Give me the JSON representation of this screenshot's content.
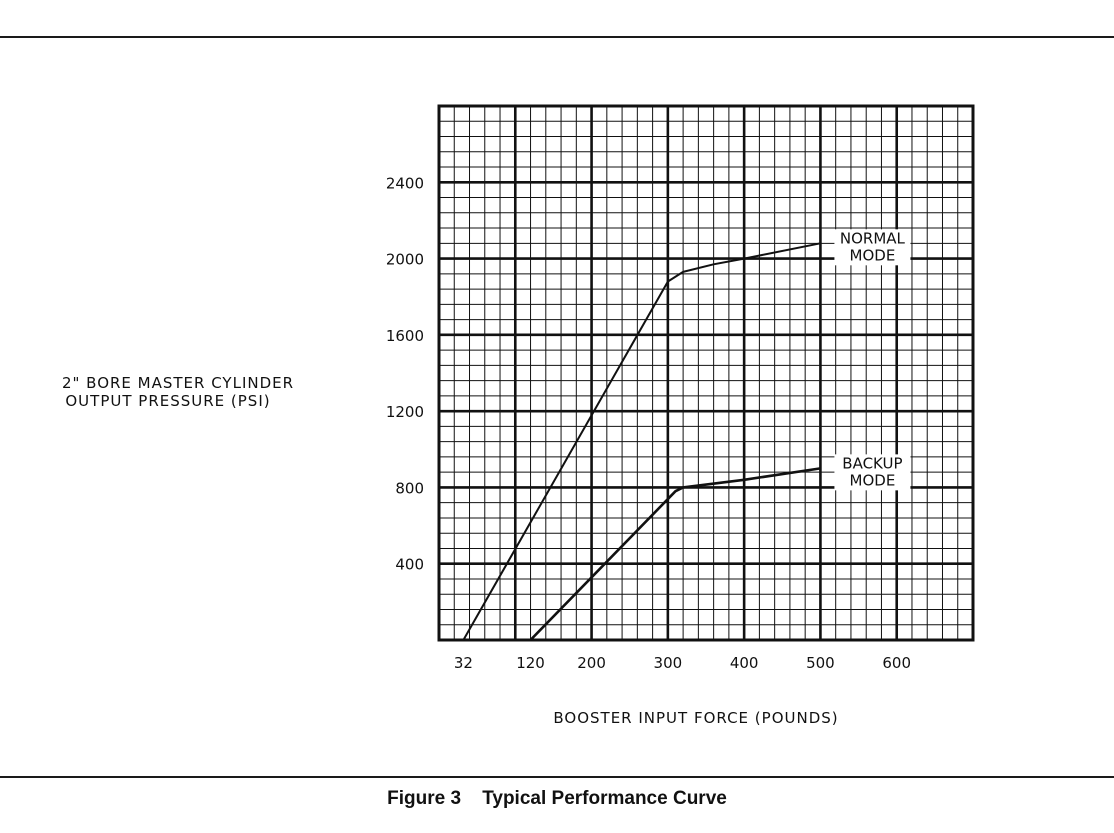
{
  "chart_data": {
    "type": "line",
    "ylabel_lines": [
      "2\" BORE MASTER CYLINDER",
      "OUTPUT PRESSURE (PSI)"
    ],
    "xlabel": "BOOSTER INPUT FORCE (POUNDS)",
    "x_tick_labels": [
      {
        "value": 32,
        "label": "32"
      },
      {
        "value": 120,
        "label": "120"
      },
      {
        "value": 200,
        "label": "200"
      },
      {
        "value": 300,
        "label": "300"
      },
      {
        "value": 400,
        "label": "400"
      },
      {
        "value": 500,
        "label": "500"
      },
      {
        "value": 600,
        "label": "600"
      }
    ],
    "y_ticks": [
      400,
      800,
      1200,
      1600,
      2000,
      2400
    ],
    "xlim": [
      0,
      700
    ],
    "ylim": [
      0,
      2800
    ],
    "grid": true,
    "series": [
      {
        "name": "NORMAL MODE",
        "label_lines": [
          "NORMAL",
          "MODE"
        ],
        "x": [
          32,
          300,
          320,
          360,
          400,
          500
        ],
        "y": [
          0,
          1880,
          1930,
          1970,
          2000,
          2080
        ]
      },
      {
        "name": "BACKUP MODE",
        "label_lines": [
          "BACKUP",
          "MODE"
        ],
        "x": [
          120,
          310,
          320,
          400,
          500
        ],
        "y": [
          0,
          780,
          800,
          840,
          900
        ]
      }
    ]
  },
  "caption": {
    "figure": "Figure 3",
    "title": "Typical Performance Curve"
  }
}
